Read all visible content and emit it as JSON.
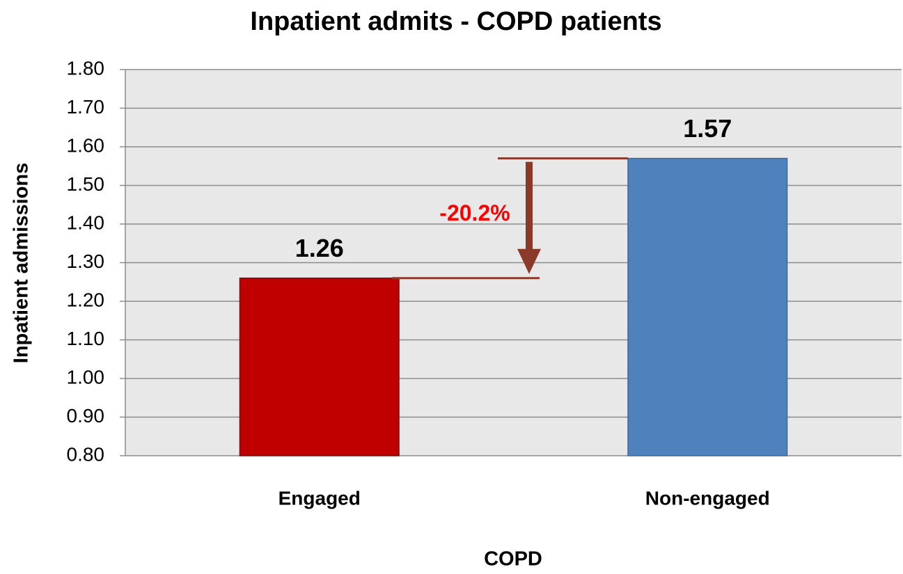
{
  "chart_data": {
    "type": "bar",
    "title": "Inpatient admits - COPD patients",
    "categories": [
      "Engaged",
      "Non-engaged"
    ],
    "values": [
      1.26,
      1.57
    ],
    "colors": [
      "#c00000",
      "#4f81bd"
    ],
    "ylabel": "Inpatient  admissions",
    "xlabel": "COPD",
    "annotation": "-20.2%",
    "ylim": [
      0.8,
      1.8
    ],
    "yticks": [
      {
        "value": 0.8,
        "label": "0.80"
      },
      {
        "value": 0.9,
        "label": "0.90"
      },
      {
        "value": 1.0,
        "label": "1.00"
      },
      {
        "value": 1.1,
        "label": "1.10"
      },
      {
        "value": 1.2,
        "label": "1.20"
      },
      {
        "value": 1.3,
        "label": "1.30"
      },
      {
        "value": 1.4,
        "label": "1.40"
      },
      {
        "value": 1.5,
        "label": "1.50"
      },
      {
        "value": 1.6,
        "label": "1.60"
      },
      {
        "value": 1.7,
        "label": "1.70"
      },
      {
        "value": 1.8,
        "label": "1.80"
      }
    ],
    "grid": true
  }
}
